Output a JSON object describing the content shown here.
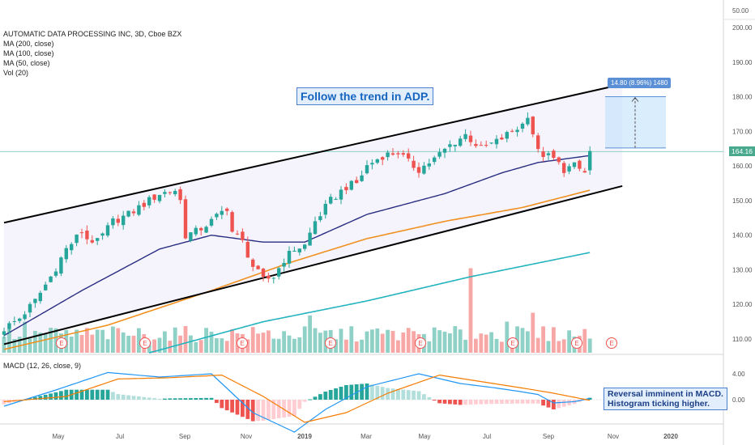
{
  "legend": {
    "title": "AUTOMATIC DATA PROCESSING INC, 3D, Cboe BZX",
    "ma200": "MA (200, close)",
    "ma100": "MA (100, close)",
    "ma50": "MA (50, close)",
    "vol": "Vol (20)"
  },
  "annotations": {
    "trend": "Follow the trend in ADP.",
    "macd_line1": "Reversal imminent in MACD.",
    "macd_line2": "Histogram ticking higher.",
    "measure": "14.80 (8.96%) 1480"
  },
  "macd_legend": "MACD (12, 26, close, 9)",
  "price_tag": "164.16",
  "colors": {
    "up": "#26a69a",
    "down": "#ef5350",
    "vol_up": "#8fd1c6",
    "vol_down": "#f7a8a6",
    "ma50": "#2a2e83",
    "ma100": "#f0901f",
    "ma200": "#22b3be",
    "macd": "#2196f3",
    "signal": "#f57c00",
    "channel": "#000000",
    "measure": "#5b8fd6"
  },
  "chart_data": {
    "type": "candlestick",
    "yaxis_ticks": [
      "50.00",
      "200.00",
      "190.00",
      "180.00",
      "170.00",
      "160.00",
      "150.00",
      "140.00",
      "130.00",
      "120.00",
      "110.00"
    ],
    "macd_axis_ticks": [
      "4.00",
      "0.00"
    ],
    "xaxis_ticks": [
      "May",
      "Jul",
      "Sep",
      "Nov",
      "2019",
      "Mar",
      "May",
      "Jul",
      "Sep",
      "Nov",
      "2020"
    ],
    "earnings_markers": [
      "E",
      "E",
      "E",
      "E",
      "E",
      "E",
      "E",
      "E"
    ],
    "price_range": [
      106,
      204
    ],
    "current_price": 164.16,
    "measure": {
      "from": 165.2,
      "to": 180.0,
      "change": 14.8,
      "percent": 8.96
    },
    "price_anchors": [
      [
        0,
        113
      ],
      [
        3,
        116
      ],
      [
        6,
        121
      ],
      [
        9,
        128
      ],
      [
        12,
        136
      ],
      [
        15,
        141
      ],
      [
        16,
        139
      ],
      [
        18,
        138
      ],
      [
        21,
        144
      ],
      [
        24,
        146
      ],
      [
        27,
        149
      ],
      [
        30,
        152
      ],
      [
        33,
        153
      ],
      [
        34,
        150
      ],
      [
        35,
        140
      ],
      [
        37,
        141
      ],
      [
        40,
        144
      ],
      [
        43,
        148
      ],
      [
        44,
        141
      ],
      [
        46,
        138
      ],
      [
        48,
        131
      ],
      [
        50,
        127
      ],
      [
        52,
        128
      ],
      [
        54,
        133
      ],
      [
        56,
        136
      ],
      [
        58,
        137
      ],
      [
        60,
        144
      ],
      [
        63,
        150
      ],
      [
        66,
        154
      ],
      [
        68,
        155
      ],
      [
        70,
        160
      ],
      [
        73,
        163
      ],
      [
        76,
        164
      ],
      [
        78,
        161
      ],
      [
        80,
        159
      ],
      [
        83,
        162
      ],
      [
        86,
        166
      ],
      [
        89,
        169
      ],
      [
        92,
        165
      ],
      [
        95,
        167
      ],
      [
        98,
        170
      ],
      [
        100,
        172
      ],
      [
        101,
        175
      ],
      [
        103,
        164
      ],
      [
        106,
        162
      ],
      [
        108,
        159
      ],
      [
        110,
        160
      ],
      [
        112,
        158
      ],
      [
        113,
        164
      ]
    ],
    "ma50_anchors": [
      [
        0,
        111
      ],
      [
        15,
        124
      ],
      [
        30,
        136
      ],
      [
        40,
        140
      ],
      [
        50,
        138
      ],
      [
        58,
        138
      ],
      [
        70,
        146
      ],
      [
        85,
        152
      ],
      [
        96,
        158
      ],
      [
        103,
        161
      ],
      [
        113,
        163
      ]
    ],
    "ma100_anchors": [
      [
        0,
        107
      ],
      [
        20,
        114
      ],
      [
        40,
        124
      ],
      [
        55,
        132
      ],
      [
        70,
        139
      ],
      [
        85,
        144
      ],
      [
        100,
        148
      ],
      [
        113,
        153
      ]
    ],
    "ma200_anchors": [
      [
        28,
        106
      ],
      [
        50,
        115
      ],
      [
        70,
        121
      ],
      [
        90,
        128
      ],
      [
        113,
        135
      ]
    ],
    "channel": {
      "upper": [
        [
          0,
          143.6
        ],
        [
          113,
          181.5
        ]
      ],
      "lower": [
        [
          0,
          108.5
        ],
        [
          113,
          153.0
        ]
      ]
    },
    "volume_spikes": [
      [
        4,
        0.35
      ],
      [
        59,
        0.42
      ],
      [
        90,
        0.95
      ],
      [
        97,
        0.35
      ],
      [
        102,
        0.45
      ]
    ],
    "macd_anchors": [
      [
        0,
        -1.0
      ],
      [
        10,
        1.5
      ],
      [
        20,
        4.2
      ],
      [
        30,
        3.5
      ],
      [
        40,
        4.0
      ],
      [
        48,
        -2.0
      ],
      [
        56,
        -5.0
      ],
      [
        62,
        -1.5
      ],
      [
        70,
        2.0
      ],
      [
        80,
        4.0
      ],
      [
        88,
        2.5
      ],
      [
        95,
        1.8
      ],
      [
        100,
        1.2
      ],
      [
        103,
        0.8
      ],
      [
        106,
        -0.5
      ],
      [
        110,
        -0.3
      ],
      [
        113,
        0.2
      ]
    ],
    "signal_anchors": [
      [
        0,
        -0.3
      ],
      [
        12,
        0.5
      ],
      [
        22,
        3.2
      ],
      [
        32,
        3.4
      ],
      [
        42,
        3.8
      ],
      [
        50,
        0.5
      ],
      [
        58,
        -3.5
      ],
      [
        66,
        -2.0
      ],
      [
        74,
        1.0
      ],
      [
        84,
        3.8
      ],
      [
        92,
        2.8
      ],
      [
        100,
        1.8
      ],
      [
        106,
        1.0
      ],
      [
        113,
        -0.1
      ]
    ]
  }
}
